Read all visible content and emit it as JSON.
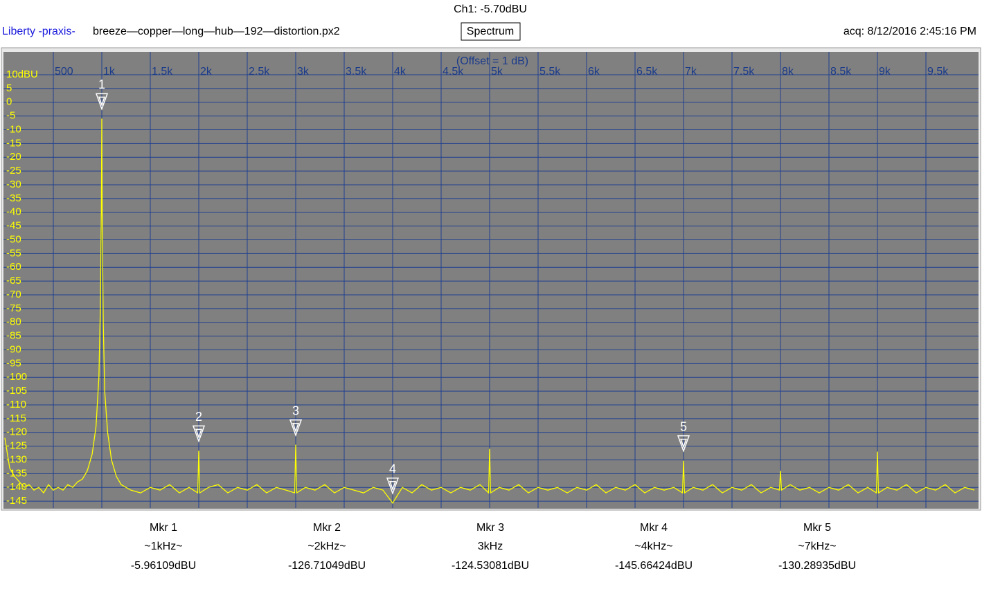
{
  "header": {
    "channel": "Ch1: -5.70dBU",
    "brand": "Liberty -praxis-",
    "file": "breeze—copper—long—hub—192—distortion.px2",
    "view": "Spectrum",
    "acquired": "acq: 8/12/2016 2:45:16 PM"
  },
  "chart_data": {
    "type": "line",
    "annotation": "(Offset = 1 dB)",
    "grid": true,
    "grid_color": "#1f3f8f",
    "background": "#808080",
    "xlim": [
      0,
      10000
    ],
    "ylim": [
      -147.5,
      12.5
    ],
    "xticks": [
      {
        "value": 500,
        "label": "500"
      },
      {
        "value": 1000,
        "label": "1k"
      },
      {
        "value": 1500,
        "label": "1.5k"
      },
      {
        "value": 2000,
        "label": "2k"
      },
      {
        "value": 2500,
        "label": "2.5k"
      },
      {
        "value": 3000,
        "label": "3k"
      },
      {
        "value": 3500,
        "label": "3.5k"
      },
      {
        "value": 4000,
        "label": "4k"
      },
      {
        "value": 4500,
        "label": "4.5k"
      },
      {
        "value": 5000,
        "label": "5k"
      },
      {
        "value": 5500,
        "label": "5.5k"
      },
      {
        "value": 6000,
        "label": "6k"
      },
      {
        "value": 6500,
        "label": "6.5k"
      },
      {
        "value": 7000,
        "label": "7k"
      },
      {
        "value": 7500,
        "label": "7.5k"
      },
      {
        "value": 8000,
        "label": "8k"
      },
      {
        "value": 8500,
        "label": "8.5k"
      },
      {
        "value": 9000,
        "label": "9k"
      },
      {
        "value": 9500,
        "label": "9.5k"
      }
    ],
    "yticks": [
      {
        "value": 10,
        "label": "10dBU"
      },
      5,
      0,
      -5,
      -10,
      -15,
      -20,
      -25,
      -30,
      -35,
      -40,
      -45,
      -50,
      -55,
      -60,
      -65,
      -70,
      -75,
      -80,
      -85,
      -90,
      -95,
      -100,
      -105,
      -110,
      -115,
      -120,
      -125,
      -130,
      -135,
      -140,
      -145
    ],
    "series": [
      {
        "name": "Ch1",
        "color": "#ffff00",
        "x": [
          0,
          50,
          100,
          150,
          200,
          250,
          300,
          350,
          400,
          450,
          500,
          550,
          600,
          650,
          700,
          750,
          800,
          850,
          900,
          940,
          970,
          985,
          995,
          1000,
          1005,
          1015,
          1030,
          1060,
          1100,
          1150,
          1200,
          1300,
          1400,
          1500,
          1600,
          1700,
          1800,
          1900,
          1990,
          2000,
          2010,
          2100,
          2200,
          2300,
          2400,
          2500,
          2600,
          2700,
          2800,
          2900,
          2990,
          3000,
          3010,
          3100,
          3200,
          3300,
          3400,
          3500,
          3600,
          3700,
          3800,
          3900,
          4000,
          4100,
          4200,
          4300,
          4400,
          4500,
          4600,
          4700,
          4800,
          4900,
          4990,
          5000,
          5010,
          5100,
          5200,
          5300,
          5400,
          5500,
          5600,
          5700,
          5800,
          5900,
          6000,
          6100,
          6200,
          6300,
          6400,
          6500,
          6600,
          6700,
          6800,
          6900,
          6990,
          7000,
          7010,
          7100,
          7200,
          7300,
          7400,
          7500,
          7600,
          7700,
          7800,
          7900,
          7990,
          8000,
          8010,
          8100,
          8200,
          8300,
          8400,
          8500,
          8600,
          8700,
          8800,
          8900,
          8990,
          9000,
          9010,
          9100,
          9200,
          9300,
          9400,
          9500,
          9600,
          9700,
          9800,
          9900,
          10000
        ],
        "values": [
          -122,
          -133,
          -136,
          -138,
          -140,
          -139,
          -141,
          -140,
          -142,
          -139,
          -141,
          -140,
          -141,
          -139,
          -140,
          -138,
          -137,
          -134,
          -128,
          -118,
          -100,
          -75,
          -40,
          -5.96,
          -45,
          -80,
          -105,
          -120,
          -130,
          -136,
          -139,
          -141,
          -142,
          -140,
          -141,
          -139,
          -142,
          -140,
          -142,
          -126.7,
          -142,
          -140,
          -139,
          -142,
          -140,
          -141,
          -139,
          -142,
          -140,
          -141,
          -142,
          -124.5,
          -142,
          -140,
          -141,
          -139,
          -142,
          -140,
          -141,
          -142,
          -140,
          -141,
          -145.7,
          -140,
          -142,
          -139,
          -141,
          -140,
          -142,
          -140,
          -141,
          -139,
          -142,
          -126,
          -142,
          -140,
          -141,
          -139,
          -142,
          -140,
          -141,
          -140,
          -142,
          -140,
          -141,
          -139,
          -142,
          -140,
          -141,
          -139,
          -142,
          -140,
          -141,
          -140,
          -142,
          -130.3,
          -142,
          -140,
          -141,
          -139,
          -142,
          -140,
          -141,
          -139,
          -142,
          -140,
          -141,
          -134,
          -141,
          -139,
          -141,
          -140,
          -142,
          -140,
          -141,
          -139,
          -142,
          -140,
          -142,
          -127,
          -142,
          -140,
          -141,
          -139,
          -142,
          -140,
          -141,
          -139,
          -142,
          -140,
          -141
        ]
      }
    ],
    "markers": [
      {
        "label": "1",
        "name": "Mkr 1",
        "freq_label": "~1kHz~",
        "x": 1000,
        "value": -5.96109,
        "value_label": "-5.96109dBU"
      },
      {
        "label": "2",
        "name": "Mkr 2",
        "freq_label": "~2kHz~",
        "x": 2000,
        "value": -126.71049,
        "value_label": "-126.71049dBU"
      },
      {
        "label": "3",
        "name": "Mkr 3",
        "freq_label": "3kHz",
        "x": 3000,
        "value": -124.53081,
        "value_label": "-124.53081dBU"
      },
      {
        "label": "4",
        "name": "Mkr 4",
        "freq_label": "~4kHz~",
        "x": 4000,
        "value": -145.66424,
        "value_label": "-145.66424dBU"
      },
      {
        "label": "5",
        "name": "Mkr 5",
        "freq_label": "~7kHz~",
        "x": 7000,
        "value": -130.28935,
        "value_label": "-130.28935dBU"
      }
    ]
  }
}
